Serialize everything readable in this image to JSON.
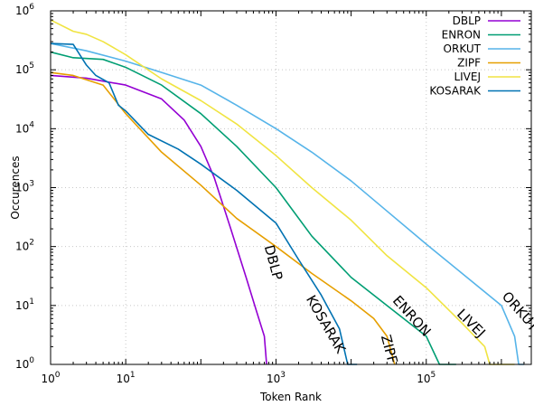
{
  "chart_data": {
    "type": "line",
    "title": "",
    "xlabel": "Token Rank",
    "ylabel": "Occurences",
    "x_scale": "log",
    "y_scale": "log",
    "xlim": [
      1,
      2500000
    ],
    "ylim": [
      1,
      1000000
    ],
    "grid": true,
    "legend_position": "top-right",
    "x_ticks": [
      {
        "value": 1,
        "base": "10",
        "exp": "0"
      },
      {
        "value": 10,
        "base": "10",
        "exp": "1"
      },
      {
        "value": 1000,
        "base": "10",
        "exp": "3"
      },
      {
        "value": 100000,
        "base": "10",
        "exp": "5"
      }
    ],
    "y_ticks": [
      {
        "value": 1,
        "base": "10",
        "exp": "0"
      },
      {
        "value": 10,
        "base": "10",
        "exp": "1"
      },
      {
        "value": 100,
        "base": "10",
        "exp": "2"
      },
      {
        "value": 1000,
        "base": "10",
        "exp": "3"
      },
      {
        "value": 10000,
        "base": "10",
        "exp": "4"
      },
      {
        "value": 100000,
        "base": "10",
        "exp": "5"
      },
      {
        "value": 1000000,
        "base": "10",
        "exp": "6"
      }
    ],
    "series": [
      {
        "name": "DBLP",
        "color": "#9400d3",
        "label": "DBLP",
        "label_rotation": 75,
        "points": [
          [
            1,
            80000
          ],
          [
            3,
            72000
          ],
          [
            10,
            55000
          ],
          [
            30,
            32000
          ],
          [
            60,
            14000
          ],
          [
            100,
            5000
          ],
          [
            150,
            1500
          ],
          [
            250,
            200
          ],
          [
            400,
            30
          ],
          [
            550,
            8
          ],
          [
            700,
            3
          ],
          [
            750,
            1
          ]
        ]
      },
      {
        "name": "ENRON",
        "color": "#009e73",
        "label": "ENRON",
        "label_rotation": 48,
        "points": [
          [
            1,
            200000
          ],
          [
            2,
            160000
          ],
          [
            5,
            150000
          ],
          [
            10,
            110000
          ],
          [
            30,
            55000
          ],
          [
            100,
            18000
          ],
          [
            300,
            5000
          ],
          [
            1000,
            1000
          ],
          [
            3000,
            150
          ],
          [
            10000,
            30
          ],
          [
            30000,
            10
          ],
          [
            100000,
            3
          ],
          [
            150000,
            1
          ],
          [
            250000,
            1
          ]
        ]
      },
      {
        "name": "ORKUT",
        "color": "#56b4e9",
        "label": "ORKUT",
        "label_rotation": 48,
        "points": [
          [
            1,
            280000
          ],
          [
            3,
            210000
          ],
          [
            10,
            140000
          ],
          [
            30,
            90000
          ],
          [
            100,
            55000
          ],
          [
            300,
            25000
          ],
          [
            1000,
            10000
          ],
          [
            3000,
            4000
          ],
          [
            10000,
            1300
          ],
          [
            30000,
            400
          ],
          [
            100000,
            110
          ],
          [
            300000,
            35
          ],
          [
            1000000,
            10
          ],
          [
            1500000,
            3
          ],
          [
            1700000,
            1
          ],
          [
            2000000,
            1
          ]
        ]
      },
      {
        "name": "ZIPF",
        "color": "#e69f00",
        "label": "ZIPF",
        "label_rotation": 75,
        "points": [
          [
            1,
            90000
          ],
          [
            2,
            80000
          ],
          [
            5,
            55000
          ],
          [
            10,
            18000
          ],
          [
            30,
            4000
          ],
          [
            100,
            1100
          ],
          [
            300,
            300
          ],
          [
            1000,
            100
          ],
          [
            3000,
            35
          ],
          [
            10000,
            12
          ],
          [
            20000,
            6
          ],
          [
            30000,
            3
          ],
          [
            38000,
            1
          ]
        ]
      },
      {
        "name": "LIVEJ",
        "color": "#f0e442",
        "label": "LIVEJ",
        "label_rotation": 45,
        "points": [
          [
            1,
            700000
          ],
          [
            2,
            450000
          ],
          [
            3,
            400000
          ],
          [
            5,
            300000
          ],
          [
            10,
            180000
          ],
          [
            30,
            70000
          ],
          [
            100,
            30000
          ],
          [
            300,
            12000
          ],
          [
            1000,
            3500
          ],
          [
            3000,
            1000
          ],
          [
            10000,
            280
          ],
          [
            30000,
            70
          ],
          [
            100000,
            20
          ],
          [
            300000,
            5
          ],
          [
            600000,
            2
          ],
          [
            700000,
            1
          ],
          [
            1500000,
            1
          ]
        ]
      },
      {
        "name": "KOSARAK",
        "color": "#0072b2",
        "label": "KOSARAK",
        "label_rotation": 60,
        "points": [
          [
            1,
            280000
          ],
          [
            2,
            270000
          ],
          [
            3,
            120000
          ],
          [
            4,
            80000
          ],
          [
            6,
            60000
          ],
          [
            8,
            25000
          ],
          [
            10,
            20000
          ],
          [
            20,
            8000
          ],
          [
            50,
            4500
          ],
          [
            100,
            2500
          ],
          [
            300,
            900
          ],
          [
            1000,
            250
          ],
          [
            2000,
            60
          ],
          [
            4000,
            15
          ],
          [
            7000,
            4
          ],
          [
            9000,
            1
          ],
          [
            12000,
            1
          ]
        ]
      }
    ]
  }
}
